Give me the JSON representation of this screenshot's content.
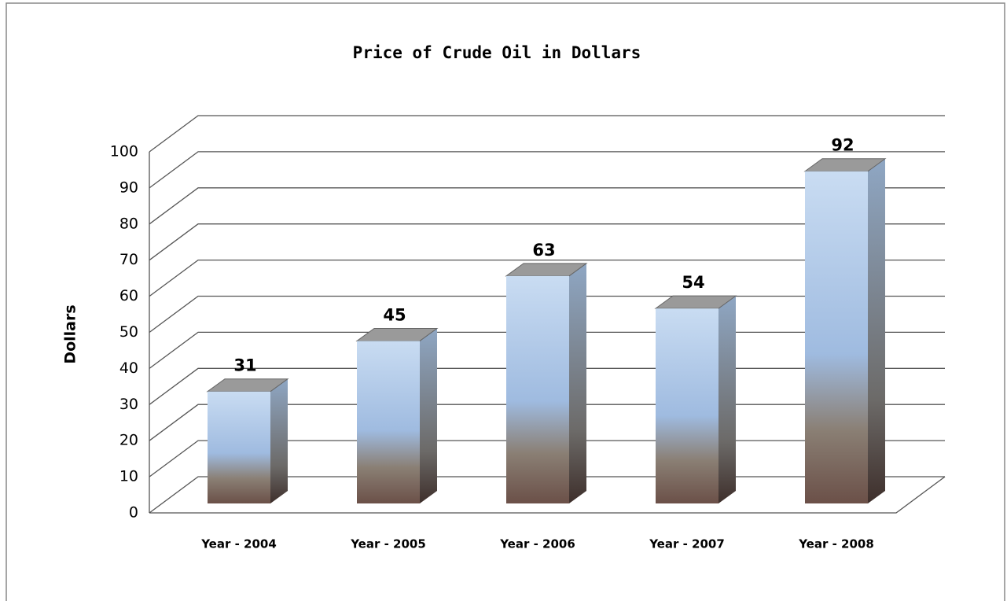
{
  "chart_data": {
    "type": "bar3d",
    "title": "Price of Crude Oil in Dollars",
    "y_label": "Dollars",
    "categories": [
      "Year - 2004",
      "Year - 2005",
      "Year - 2006",
      "Year - 2007",
      "Year - 2008"
    ],
    "values": [
      31,
      45,
      63,
      54,
      92
    ],
    "ylim": [
      0,
      100
    ],
    "yticks": [
      0,
      10,
      20,
      30,
      40,
      50,
      60,
      70,
      80,
      90,
      100
    ],
    "grid": true
  }
}
